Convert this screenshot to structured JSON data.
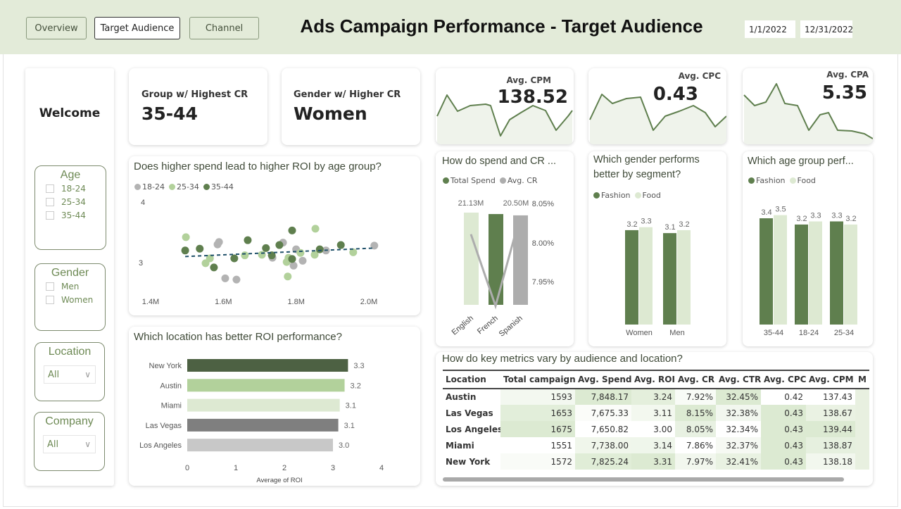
{
  "header": {
    "nav": [
      "Overview",
      "Target Audience",
      "Channel"
    ],
    "active_nav": "Target Audience",
    "title": "Ads Campaign Performance - Target Audience",
    "date_start": "1/1/2022",
    "date_end": "12/31/2022"
  },
  "sidebar": {
    "welcome": "Welcome",
    "age": {
      "label": "Age",
      "options": [
        "18-24",
        "25-34",
        "35-44"
      ]
    },
    "gender": {
      "label": "Gender",
      "options": [
        "Men",
        "Women"
      ]
    },
    "location": {
      "label": "Location",
      "value": "All"
    },
    "company": {
      "label": "Company",
      "value": "All"
    }
  },
  "kpis": {
    "highest_cr_group": {
      "label": "Group w/ Highest CR",
      "value": "35-44"
    },
    "higher_cr_gender": {
      "label": "Gender w/ Higher CR",
      "value": "Women"
    },
    "cpm": {
      "label": "Avg. CPM",
      "value": "138.52"
    },
    "cpc": {
      "label": "Avg. CPC",
      "value": "0.43"
    },
    "cpa": {
      "label": "Avg. CPA",
      "value": "5.35"
    }
  },
  "colors": {
    "dark_green": "#5f7f4e",
    "mid_green": "#b2d19b",
    "light_green": "#dde9d2",
    "gray": "#adadad",
    "dark_gray": "#7f7f7f",
    "light_gray": "#c8c8c8",
    "trend": "#1f5069",
    "header_bg": "#e3ebd9"
  },
  "chart_data": [
    {
      "id": "scatter",
      "type": "scatter",
      "title": "Does higher spend lead to higher ROI by age group?",
      "x_ticks": [
        "1.4M",
        "1.6M",
        "1.8M",
        "2.0M"
      ],
      "y_ticks": [
        "4",
        "3"
      ],
      "xlim": [
        1.4,
        2.0
      ],
      "ylim_ticks": [
        3,
        4
      ],
      "legend_position": "top-left",
      "series": [
        {
          "name": "18-24",
          "color": "#b3b3b3",
          "points": [
            [
              1.588,
              3.34
            ],
            [
              1.584,
              3.3
            ],
            [
              1.605,
              2.74
            ],
            [
              1.636,
              2.72
            ],
            [
              1.764,
              3.33
            ],
            [
              1.735,
              3.08
            ],
            [
              1.8,
              3.22
            ],
            [
              1.793,
              2.95
            ],
            [
              1.818,
              3.03
            ],
            [
              1.882,
              3.2
            ],
            [
              2.015,
              3.28
            ]
          ]
        },
        {
          "name": "25-34",
          "color": "#b2d19b",
          "points": [
            [
              1.497,
              3.42
            ],
            [
              1.563,
              3.07
            ],
            [
              1.551,
              2.99
            ],
            [
              1.659,
              3.12
            ],
            [
              1.706,
              3.13
            ],
            [
              1.779,
              3.08
            ],
            [
              1.774,
              3.01
            ],
            [
              1.777,
              2.77
            ],
            [
              1.812,
              3.16
            ],
            [
              1.851,
              3.13
            ],
            [
              1.853,
              3.56
            ],
            [
              1.957,
              3.17
            ]
          ]
        },
        {
          "name": "35-44",
          "color": "#5f7f4e",
          "points": [
            [
              1.495,
              3.2
            ],
            [
              1.535,
              3.23
            ],
            [
              1.574,
              2.92
            ],
            [
              1.63,
              3.07
            ],
            [
              1.667,
              3.37
            ],
            [
              1.717,
              3.24
            ],
            [
              1.733,
              3.12
            ],
            [
              1.754,
              3.29
            ],
            [
              1.789,
              3.53
            ],
            [
              1.789,
              3.06
            ],
            [
              1.865,
              3.22
            ],
            [
              1.923,
              3.29
            ]
          ]
        }
      ],
      "trendline": [
        [
          1.495,
          3.1
        ],
        [
          2.015,
          3.24
        ]
      ]
    },
    {
      "id": "location_roi",
      "type": "bar",
      "orientation": "horizontal",
      "title": "Which location has better ROI performance?",
      "xlabel": "Average of ROI",
      "xlim": [
        0,
        4
      ],
      "x_ticks": [
        "0",
        "1",
        "2",
        "3",
        "4"
      ],
      "categories": [
        "New York",
        "Austin",
        "Miami",
        "Las Vegas",
        "Los Angeles"
      ],
      "values": [
        3.31,
        3.24,
        3.14,
        3.11,
        3.0
      ],
      "labels": [
        "3.3",
        "3.2",
        "3.1",
        "3.1",
        "3.0"
      ],
      "bar_colors": [
        "#4d6143",
        "#b2d19b",
        "#dde9d2",
        "#7f7f7f",
        "#c8c8c8"
      ]
    },
    {
      "id": "language_combo",
      "type": "bar",
      "title": "How do spend and CR ...",
      "categories": [
        "English",
        "French",
        "Spanish"
      ],
      "series": [
        {
          "name": "Total Spend",
          "values": [
            21.13,
            20.8,
            20.5
          ],
          "labels": [
            "21.13M",
            "",
            "20.50M"
          ],
          "bar_colors": [
            "#dde9d2",
            "#5f7f4e",
            "#adadad"
          ]
        },
        {
          "name": "Avg. CR",
          "type": "line",
          "values": [
            8.011,
            7.92,
            8.034
          ],
          "color": "#adadad"
        }
      ],
      "y2_ticks": [
        "8.05%",
        "8.00%",
        "7.95%"
      ],
      "legend_position": "top-left"
    },
    {
      "id": "gender_segment",
      "type": "bar",
      "title": "Which gender performs better by segment?",
      "categories": [
        "Women",
        "Men"
      ],
      "series": [
        {
          "name": "Fashion",
          "values": [
            3.2,
            3.1
          ],
          "color": "#5f7f4e"
        },
        {
          "name": "Food",
          "values": [
            3.3,
            3.2
          ],
          "color": "#dde9d2"
        }
      ],
      "legend_position": "top-left"
    },
    {
      "id": "age_segment",
      "type": "bar",
      "title": "Which age group perf...",
      "categories": [
        "35-44",
        "18-24",
        "25-34"
      ],
      "series": [
        {
          "name": "Fashion",
          "values": [
            3.4,
            3.2,
            3.3
          ],
          "color": "#5f7f4e"
        },
        {
          "name": "Food",
          "values": [
            3.5,
            3.3,
            3.2
          ],
          "color": "#dde9d2"
        }
      ],
      "legend_position": "top-left"
    },
    {
      "id": "metrics_table",
      "type": "table",
      "title": "How do key metrics vary by audience and location?",
      "columns": [
        "Location",
        "Total campaigns",
        "Avg. Spend",
        "Avg. ROI",
        "Avg. CR",
        "Avg. CTR",
        "Avg. CPC",
        "Avg. CPM",
        "M"
      ],
      "rows": [
        [
          "Austin",
          "1593",
          "7,848.17",
          "3.24",
          "7.92%",
          "32.45%",
          "0.42",
          "137.43",
          ""
        ],
        [
          "Las Vegas",
          "1653",
          "7,675.33",
          "3.11",
          "8.15%",
          "32.38%",
          "0.43",
          "138.67",
          ""
        ],
        [
          "Los Angeles",
          "1675",
          "7,650.82",
          "3.00",
          "8.05%",
          "32.34%",
          "0.43",
          "139.44",
          ""
        ],
        [
          "Miami",
          "1551",
          "7,738.00",
          "3.14",
          "7.86%",
          "32.37%",
          "0.43",
          "138.87",
          ""
        ],
        [
          "New York",
          "1572",
          "7,825.24",
          "3.31",
          "7.97%",
          "32.41%",
          "0.43",
          "138.18",
          ""
        ]
      ]
    }
  ]
}
